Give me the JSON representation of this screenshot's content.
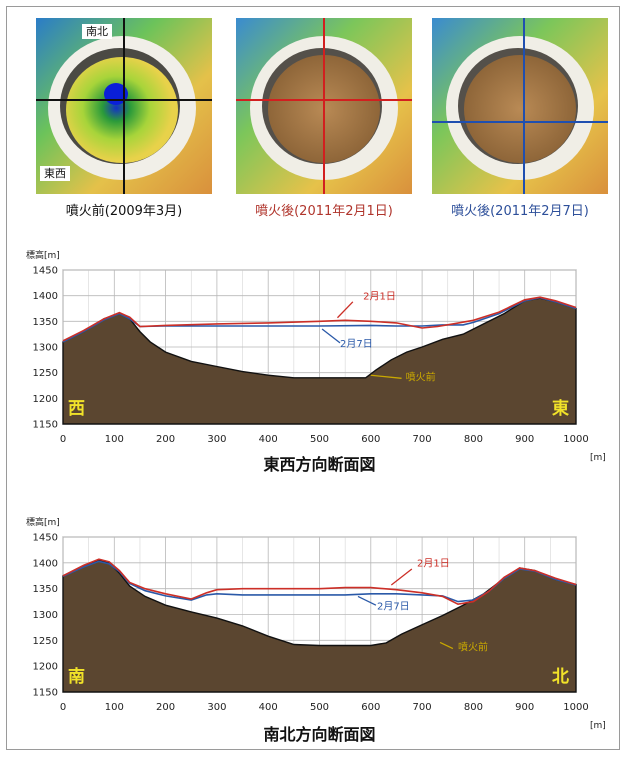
{
  "maps": [
    {
      "caption": "噴火前(2009年3月)",
      "caption_color": "#111111",
      "cross_color": "#111111",
      "tag_top": "南北",
      "tag_left": "東西",
      "style": "pre"
    },
    {
      "caption": "噴火後(2011年2月1日)",
      "caption_color": "#b0352c",
      "cross_color": "#d21f1f",
      "style": "post"
    },
    {
      "caption": "噴火後(2011年2月7日)",
      "caption_color": "#2d4f9a",
      "cross_color": "#1f4fb0",
      "style": "post"
    }
  ],
  "colors": {
    "terrain": "#5b4630",
    "feb1": "#cc2f27",
    "feb7": "#2a59a8",
    "pre_label": "#e7d21f",
    "grid": "#b8b8b8"
  },
  "chart_data": [
    {
      "type": "area",
      "title": "東西方向断面図",
      "ylabel": "標高[m]",
      "xlabel": "[m]",
      "xlim": [
        0,
        1000
      ],
      "ylim": [
        1150,
        1450
      ],
      "xticks": [
        0,
        100,
        200,
        300,
        400,
        500,
        600,
        700,
        800,
        900,
        1000
      ],
      "yticks": [
        1150,
        1200,
        1250,
        1300,
        1350,
        1400,
        1450
      ],
      "grid": true,
      "side_labels": {
        "left": "西",
        "right": "東"
      },
      "annotations": {
        "feb1": "2月1日",
        "feb7": "2月7日",
        "pre": "噴火前"
      },
      "series": [
        {
          "name": "噴火前",
          "x": [
            0,
            40,
            80,
            110,
            130,
            150,
            170,
            200,
            250,
            300,
            350,
            400,
            450,
            500,
            550,
            590,
            610,
            640,
            670,
            700,
            740,
            780,
            820,
            860,
            900,
            930,
            960,
            1000
          ],
          "values": [
            1310,
            1330,
            1355,
            1365,
            1355,
            1330,
            1310,
            1290,
            1272,
            1262,
            1252,
            1245,
            1240,
            1240,
            1240,
            1240,
            1255,
            1275,
            1290,
            1300,
            1315,
            1325,
            1345,
            1365,
            1390,
            1395,
            1388,
            1375
          ]
        },
        {
          "name": "2月1日",
          "x": [
            0,
            40,
            80,
            110,
            130,
            150,
            200,
            300,
            400,
            500,
            550,
            600,
            650,
            700,
            730,
            760,
            800,
            850,
            900,
            930,
            960,
            1000
          ],
          "values": [
            1312,
            1332,
            1355,
            1367,
            1358,
            1340,
            1342,
            1345,
            1347,
            1350,
            1352,
            1350,
            1347,
            1337,
            1340,
            1345,
            1352,
            1368,
            1392,
            1397,
            1390,
            1377
          ]
        },
        {
          "name": "2月7日",
          "x": [
            0,
            40,
            80,
            110,
            130,
            150,
            200,
            300,
            400,
            500,
            600,
            650,
            700,
            740,
            780,
            800,
            850,
            900,
            930,
            960,
            1000
          ],
          "values": [
            1310,
            1330,
            1353,
            1365,
            1355,
            1340,
            1341,
            1341,
            1341,
            1341,
            1342,
            1341,
            1341,
            1343,
            1343,
            1348,
            1365,
            1390,
            1396,
            1388,
            1375
          ]
        }
      ]
    },
    {
      "type": "area",
      "title": "南北方向断面図",
      "ylabel": "標高[m]",
      "xlabel": "[m]",
      "xlim": [
        0,
        1000
      ],
      "ylim": [
        1150,
        1450
      ],
      "xticks": [
        0,
        100,
        200,
        300,
        400,
        500,
        600,
        700,
        800,
        900,
        1000
      ],
      "yticks": [
        1150,
        1200,
        1250,
        1300,
        1350,
        1400,
        1450
      ],
      "grid": true,
      "side_labels": {
        "left": "南",
        "right": "北"
      },
      "annotations": {
        "feb1": "2月1日",
        "feb7": "2月7日",
        "pre": "噴火前"
      },
      "series": [
        {
          "name": "噴火前",
          "x": [
            0,
            40,
            70,
            90,
            110,
            130,
            160,
            200,
            250,
            300,
            350,
            400,
            450,
            500,
            550,
            600,
            630,
            660,
            700,
            740,
            780,
            820,
            860,
            890,
            920,
            960,
            1000
          ],
          "values": [
            1375,
            1393,
            1405,
            1400,
            1380,
            1355,
            1335,
            1318,
            1305,
            1293,
            1278,
            1258,
            1242,
            1240,
            1240,
            1240,
            1245,
            1262,
            1280,
            1298,
            1318,
            1340,
            1370,
            1390,
            1385,
            1368,
            1358
          ]
        },
        {
          "name": "2月1日",
          "x": [
            0,
            40,
            70,
            90,
            110,
            130,
            160,
            200,
            250,
            280,
            300,
            350,
            400,
            450,
            500,
            550,
            600,
            650,
            700,
            740,
            770,
            800,
            830,
            860,
            890,
            920,
            960,
            1000
          ],
          "values": [
            1375,
            1395,
            1407,
            1402,
            1385,
            1362,
            1350,
            1340,
            1330,
            1342,
            1348,
            1350,
            1350,
            1350,
            1350,
            1352,
            1352,
            1348,
            1342,
            1335,
            1320,
            1325,
            1345,
            1372,
            1390,
            1385,
            1370,
            1358
          ]
        },
        {
          "name": "2月7日",
          "x": [
            0,
            40,
            70,
            90,
            110,
            130,
            160,
            200,
            250,
            280,
            300,
            350,
            400,
            450,
            500,
            550,
            600,
            650,
            700,
            740,
            770,
            800,
            830,
            860,
            890,
            920,
            960,
            1000
          ],
          "values": [
            1374,
            1392,
            1403,
            1398,
            1383,
            1360,
            1346,
            1336,
            1328,
            1338,
            1340,
            1338,
            1338,
            1338,
            1338,
            1338,
            1340,
            1340,
            1338,
            1336,
            1325,
            1328,
            1345,
            1370,
            1388,
            1384,
            1368,
            1357
          ]
        }
      ]
    }
  ]
}
